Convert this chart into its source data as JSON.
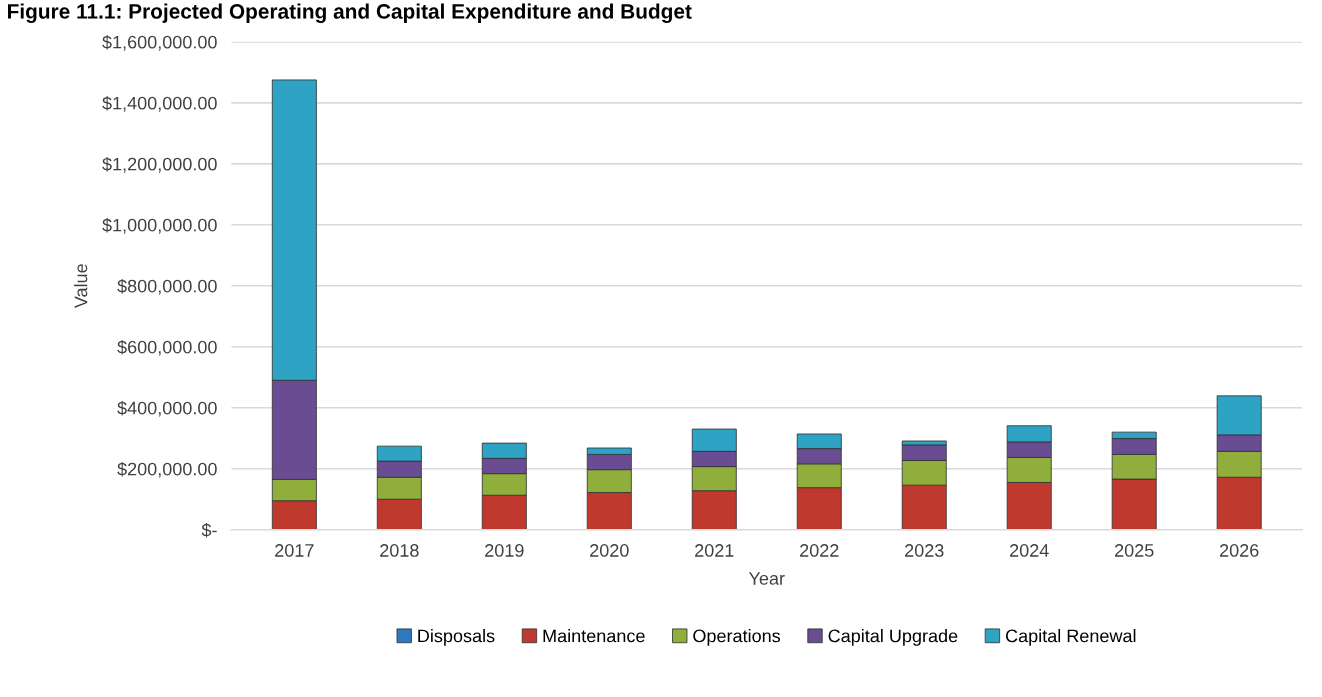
{
  "chart_data": {
    "type": "bar",
    "stacked": true,
    "title": "Figure 11.1: Projected Operating and Capital Expenditure and Budget",
    "xlabel": "Year",
    "ylabel": "Value",
    "categories": [
      "2017",
      "2018",
      "2019",
      "2020",
      "2021",
      "2022",
      "2023",
      "2024",
      "2025",
      "2026"
    ],
    "series": [
      {
        "name": "Disposals",
        "color": "#2f78c4",
        "values": [
          0,
          0,
          0,
          0,
          0,
          0,
          0,
          0,
          0,
          0
        ]
      },
      {
        "name": "Maintenance",
        "color": "#c0392f",
        "values": [
          95000,
          100000,
          113000,
          122000,
          128000,
          138000,
          146000,
          155000,
          166000,
          172000
        ]
      },
      {
        "name": "Operations",
        "color": "#8fae3c",
        "values": [
          70000,
          72000,
          71000,
          75000,
          79000,
          78000,
          81000,
          82000,
          81000,
          85000
        ]
      },
      {
        "name": "Capital Upgrade",
        "color": "#6a4c93",
        "values": [
          325000,
          53000,
          50000,
          50000,
          50000,
          50000,
          51000,
          51000,
          52000,
          54000
        ]
      },
      {
        "name": "Capital Renewal",
        "color": "#2ea3c4",
        "values": [
          985000,
          49000,
          50000,
          21000,
          73000,
          48000,
          13000,
          53000,
          21000,
          128000
        ]
      }
    ],
    "ylim": [
      0,
      1600000
    ],
    "yticks": [
      {
        "value": 0,
        "label": "$-"
      },
      {
        "value": 200000,
        "label": "$200,000.00"
      },
      {
        "value": 400000,
        "label": "$400,000.00"
      },
      {
        "value": 600000,
        "label": "$600,000.00"
      },
      {
        "value": 800000,
        "label": "$800,000.00"
      },
      {
        "value": 1000000,
        "label": "$1,000,000.00"
      },
      {
        "value": 1200000,
        "label": "$1,200,000.00"
      },
      {
        "value": 1400000,
        "label": "$1,400,000.00"
      },
      {
        "value": 1600000,
        "label": "$1,600,000.00"
      }
    ],
    "grid": "y",
    "legend": "bottom"
  }
}
